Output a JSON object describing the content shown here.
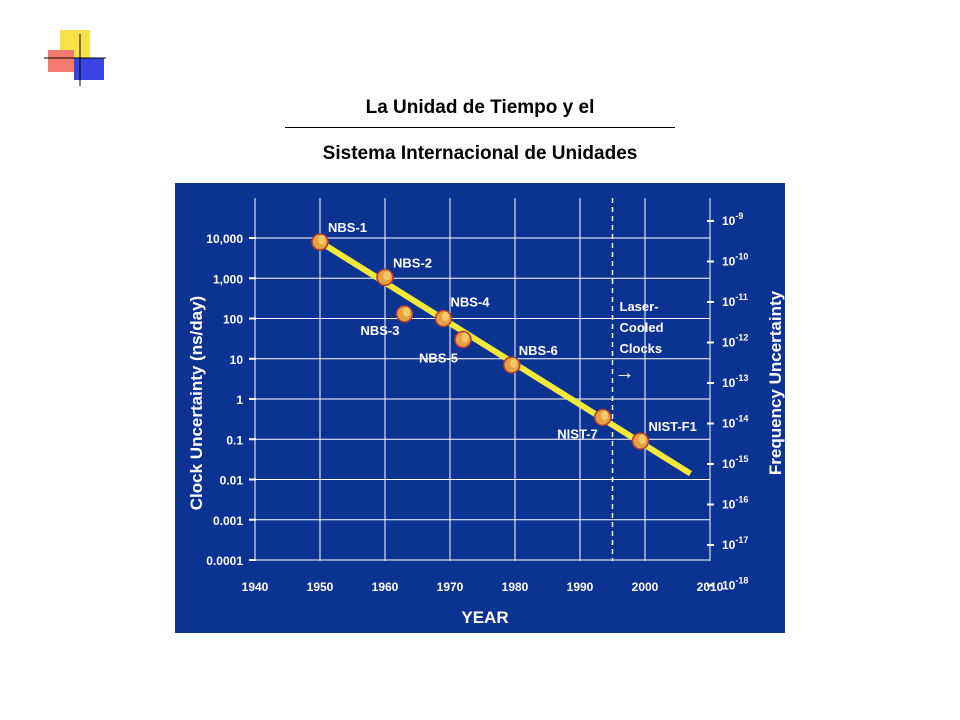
{
  "slide": {
    "title_line1": "La Unidad de Tiempo y el",
    "title_line2": "Sistema Internacional de Unidades"
  },
  "colors": {
    "chart_background": "#0c3392",
    "trend_line": "#f2e83a",
    "grid": "#ffffff",
    "point": "#e8a040",
    "label_text": "#ffffff"
  },
  "logo": {
    "icon": "decorative-squares-icon"
  },
  "chart_data": {
    "type": "scatter",
    "xlabel": "YEAR",
    "ylabel": "Clock Uncertainty  (ns/day)",
    "ylabel_right": "Frequency Uncertainty",
    "xlim": [
      1940,
      2010
    ],
    "ylim": [
      0.0001,
      10000
    ],
    "yscale": "log",
    "grid": true,
    "x_ticks": [
      "1940",
      "1950",
      "1960",
      "1970",
      "1980",
      "1990",
      "2000",
      "2010"
    ],
    "y_ticks": [
      "10,000",
      "1,000",
      "100",
      "10",
      "1",
      "0.1",
      "0.01",
      "0.001",
      "0.0001"
    ],
    "y_right_ticks": [
      "-9",
      "-10",
      "-11",
      "-12",
      "-13",
      "-14",
      "-15",
      "-16",
      "-17",
      "-18"
    ],
    "y_right_base": "10",
    "points": [
      {
        "name": "NBS-1",
        "year": 1950,
        "value": 8000
      },
      {
        "name": "NBS-2",
        "year": 1960,
        "value": 1050
      },
      {
        "name": "NBS-3",
        "year": 1963,
        "value": 130
      },
      {
        "name": "NBS-4",
        "year": 1969,
        "value": 100
      },
      {
        "name": "NBS-5",
        "year": 1972,
        "value": 30
      },
      {
        "name": "NBS-6",
        "year": 1979.5,
        "value": 7
      },
      {
        "name": "NIST-7",
        "year": 1993.5,
        "value": 0.35
      },
      {
        "name": "NIST-F1",
        "year": 1999.3,
        "value": 0.09
      }
    ],
    "trend_line": {
      "x": [
        1950,
        2007
      ],
      "y": [
        8000,
        0.014
      ]
    },
    "annotation": {
      "text": [
        "Laser-",
        "Cooled",
        "Clocks"
      ],
      "divider_year": 1995,
      "arrow": "→"
    }
  }
}
